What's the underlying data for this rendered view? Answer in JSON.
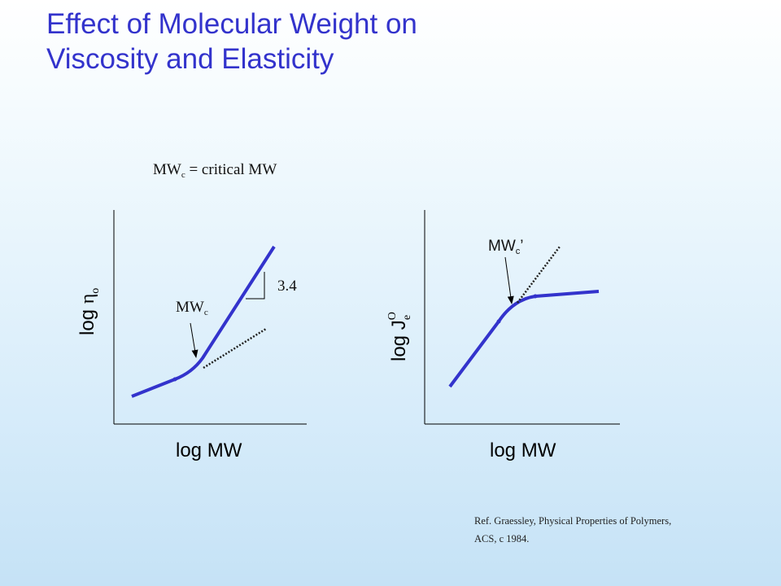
{
  "slide": {
    "title_line1": "Effect of Molecular Weight on",
    "title_line2": "Viscosity and Elasticity"
  },
  "definition": {
    "mw": "MW",
    "sub": "c",
    "rest": " = critical MW"
  },
  "left_plot": {
    "y_label_log": "log ",
    "y_label_symbol": "η",
    "y_label_sub": "o",
    "x_label": "log MW",
    "slope_label": "3.4",
    "marker_mw": "MW",
    "marker_sub": "c"
  },
  "right_plot": {
    "y_label_log": "log J",
    "y_label_sup": "O",
    "y_label_sub": "e",
    "x_label": "log MW",
    "marker_mw": "MW",
    "marker_sub": "c",
    "marker_prime": "’"
  },
  "reference": {
    "line1": "Ref. Graessley, Physical Properties of Polymers,",
    "line2": "ACS, c 1984."
  },
  "colors": {
    "title": "#3333cc",
    "curve": "#3333cc",
    "axis": "#000000"
  }
}
